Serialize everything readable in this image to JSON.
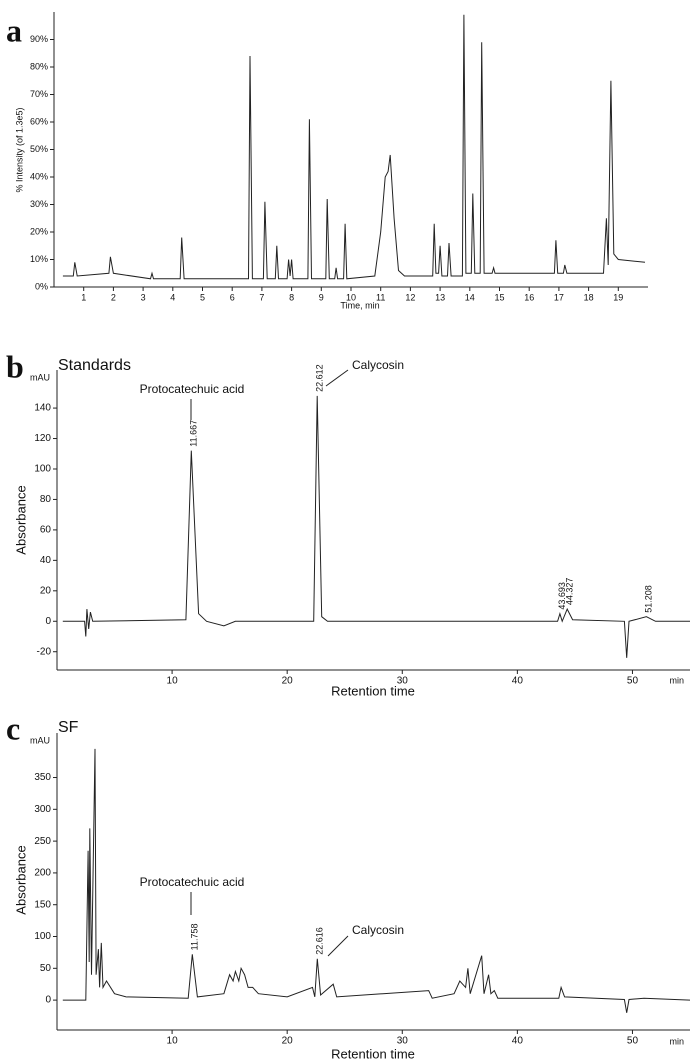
{
  "chart_data": [
    {
      "type": "line",
      "panel_label": "a",
      "y_label": "% Intensity (of 1.3e5)",
      "x_label": "Time, min",
      "xlim": [
        0,
        20
      ],
      "ylim": [
        0,
        100
      ],
      "xticks": [
        1,
        2,
        3,
        4,
        5,
        6,
        7,
        8,
        9,
        10,
        11,
        12,
        13,
        14,
        15,
        16,
        17,
        18,
        19
      ],
      "yticks": [
        {
          "value": 0,
          "label": "0%"
        },
        {
          "value": 10,
          "label": "10%"
        },
        {
          "value": 20,
          "label": "20%"
        },
        {
          "value": 30,
          "label": "30%"
        },
        {
          "value": 40,
          "label": "40%"
        },
        {
          "value": 50,
          "label": "50%"
        },
        {
          "value": 60,
          "label": "60%"
        },
        {
          "value": 70,
          "label": "70%"
        },
        {
          "value": 80,
          "label": "80%"
        },
        {
          "value": 90,
          "label": "90%"
        }
      ],
      "x": [
        0.3,
        0.65,
        0.7,
        0.78,
        1.85,
        1.9,
        2.0,
        3.25,
        3.3,
        3.35,
        4.25,
        4.3,
        4.38,
        6.55,
        6.6,
        6.68,
        7.05,
        7.1,
        7.18,
        7.45,
        7.5,
        7.56,
        7.85,
        7.9,
        7.95,
        8.0,
        8.05,
        8.55,
        8.6,
        8.67,
        9.15,
        9.2,
        9.27,
        9.45,
        9.5,
        9.55,
        9.75,
        9.8,
        9.86,
        10.8,
        11.0,
        11.15,
        11.25,
        11.32,
        11.45,
        11.6,
        11.8,
        12.75,
        12.8,
        12.86,
        12.95,
        13.0,
        13.06,
        13.25,
        13.3,
        13.37,
        13.75,
        13.8,
        13.87,
        14.05,
        14.1,
        14.17,
        14.35,
        14.4,
        14.48,
        14.75,
        14.8,
        14.85,
        16.85,
        16.9,
        16.96,
        17.15,
        17.2,
        17.27,
        18.5,
        18.6,
        18.66,
        18.75,
        18.85,
        19.0,
        19.9
      ],
      "y": [
        4,
        4,
        9,
        4,
        5,
        11,
        5,
        3,
        5,
        3,
        3,
        18,
        3,
        3,
        84,
        3,
        3,
        31,
        3,
        3,
        15,
        3,
        3,
        10,
        4,
        10,
        3,
        3,
        61,
        3,
        3,
        32,
        3,
        3,
        7,
        3,
        3,
        23,
        3,
        4,
        20,
        40,
        42,
        48,
        25,
        6,
        4,
        4,
        23,
        5,
        5,
        15,
        4,
        4,
        16,
        4,
        4,
        99,
        5,
        5,
        34,
        5,
        5,
        89,
        5,
        5,
        7,
        5,
        5,
        17,
        5,
        5,
        8,
        5,
        5,
        25,
        8,
        75,
        12,
        10,
        9
      ],
      "color": "#222222"
    },
    {
      "type": "line",
      "panel_label": "b",
      "subtitle": "Standards",
      "y_label": "Absorbance",
      "x_label": "Retention time",
      "y_unit": "mAU",
      "x_unit": "min",
      "xlim": [
        0,
        55
      ],
      "ylim": [
        -32,
        165
      ],
      "xticks": [
        10,
        20,
        30,
        40,
        50
      ],
      "yticks": [
        -20,
        0,
        20,
        40,
        60,
        80,
        100,
        120,
        140
      ],
      "x": [
        0.5,
        2.4,
        2.5,
        2.6,
        2.75,
        2.9,
        3.1,
        11.2,
        11.667,
        12.3,
        13,
        14.5,
        15.5,
        22.3,
        22.612,
        23,
        23.5,
        43.5,
        43.693,
        43.9,
        44.327,
        44.8,
        49.3,
        49.5,
        49.7,
        51.208,
        52,
        55
      ],
      "y": [
        0,
        0,
        -10,
        8,
        -5,
        6,
        0,
        1,
        112,
        5,
        0,
        -3,
        0,
        0,
        148,
        3,
        0,
        0,
        5,
        0,
        8,
        1,
        0,
        -24,
        0,
        3,
        0,
        0
      ],
      "peak_labels": [
        11.667,
        22.612,
        43.693,
        44.327,
        51.208
      ],
      "annotations": [
        "Protocatechuic acid",
        "Calycosin"
      ],
      "color": "#222222"
    },
    {
      "type": "line",
      "panel_label": "c",
      "subtitle": "SF",
      "y_label": "Absorbance",
      "x_label": "Retention time",
      "y_unit": "mAU",
      "x_unit": "min",
      "xlim": [
        0,
        55
      ],
      "ylim": [
        -47,
        420
      ],
      "xticks": [
        10,
        20,
        30,
        40,
        50
      ],
      "yticks": [
        0,
        50,
        100,
        150,
        200,
        250,
        300,
        350
      ],
      "x": [
        0.5,
        2.5,
        2.7,
        2.8,
        2.85,
        3.0,
        3.3,
        3.4,
        3.6,
        3.7,
        3.85,
        4.0,
        4.3,
        5,
        6,
        11.4,
        11.758,
        12.2,
        14.5,
        15,
        15.3,
        15.5,
        15.8,
        16.0,
        16.3,
        16.6,
        17,
        17.5,
        20,
        22.2,
        22.4,
        22.616,
        22.9,
        24,
        24.3,
        32.3,
        32.6,
        34.5,
        35,
        35.5,
        35.7,
        35.9,
        36.9,
        37.1,
        37.5,
        37.7,
        38,
        38.3,
        43.6,
        43.8,
        44.1,
        49.3,
        49.5,
        49.7,
        51,
        55
      ],
      "y": [
        0,
        0,
        235,
        60,
        270,
        40,
        395,
        40,
        80,
        20,
        90,
        20,
        30,
        10,
        5,
        3,
        72,
        5,
        10,
        40,
        30,
        45,
        30,
        50,
        40,
        20,
        20,
        10,
        5,
        20,
        5,
        65,
        8,
        25,
        5,
        15,
        3,
        10,
        30,
        20,
        50,
        10,
        70,
        10,
        40,
        10,
        15,
        3,
        3,
        20,
        5,
        1,
        -20,
        1,
        3,
        0
      ],
      "peak_labels": [
        11.758,
        22.616
      ],
      "annotations": [
        "Protocatechuic acid",
        "Calycosin"
      ],
      "color": "#222222"
    }
  ]
}
